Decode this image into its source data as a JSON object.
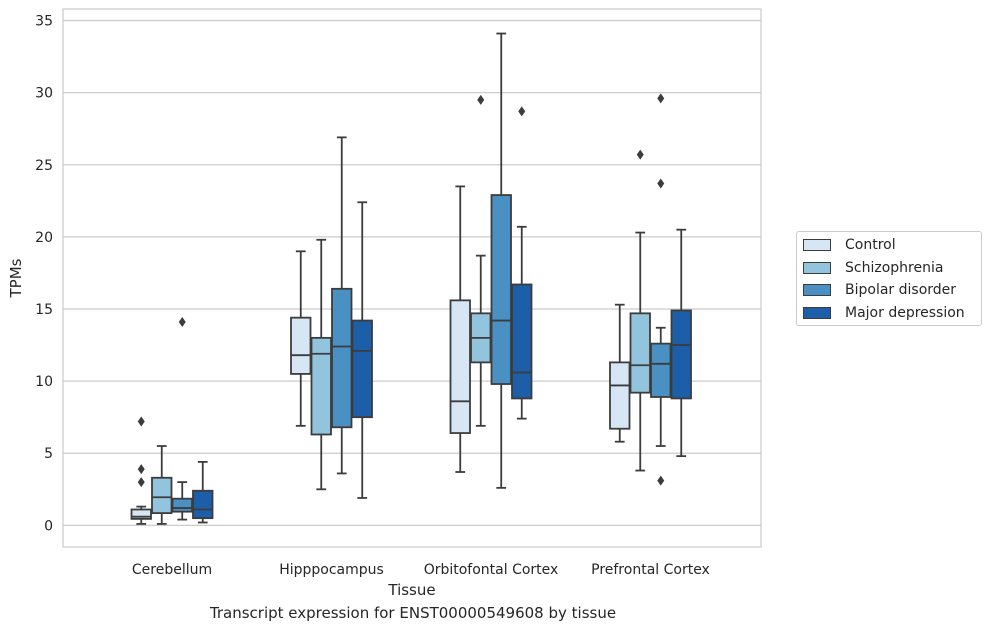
{
  "caption": "Transcript expression for ENST00000549608 by tissue",
  "legend": {
    "items": [
      {
        "label": "Control",
        "color": "#d6e6f4"
      },
      {
        "label": "Schizophrenia",
        "color": "#93c4de"
      },
      {
        "label": "Bipolar disorder",
        "color": "#4a90c2"
      },
      {
        "label": "Major depression",
        "color": "#1c5ea8"
      }
    ]
  },
  "chart_data": {
    "type": "box",
    "xlabel": "Tissue",
    "ylabel": "TPMs",
    "ylim": [
      -1.5,
      35.8
    ],
    "yticks": [
      0,
      5,
      10,
      15,
      20,
      25,
      30,
      35
    ],
    "grid": true,
    "legend_position": "right",
    "categories": [
      "Cerebellum",
      "Hipppocampus",
      "Orbitofontal Cortex",
      "Prefrontal Cortex"
    ],
    "series": [
      {
        "name": "Control",
        "color": "#d6e6f4",
        "boxes": [
          {
            "whislo": 0.1,
            "q1": 0.45,
            "med": 0.6,
            "q3": 1.1,
            "whishi": 1.3,
            "fliers": [
              3.0,
              3.9,
              7.2
            ]
          },
          {
            "whislo": 6.9,
            "q1": 10.5,
            "med": 11.8,
            "q3": 14.4,
            "whishi": 19.0,
            "fliers": []
          },
          {
            "whislo": 3.7,
            "q1": 6.4,
            "med": 8.6,
            "q3": 15.6,
            "whishi": 23.5,
            "fliers": []
          },
          {
            "whislo": 5.8,
            "q1": 6.7,
            "med": 9.7,
            "q3": 11.3,
            "whishi": 15.3,
            "fliers": []
          }
        ]
      },
      {
        "name": "Schizophrenia",
        "color": "#93c4de",
        "boxes": [
          {
            "whislo": 0.1,
            "q1": 0.85,
            "med": 1.95,
            "q3": 3.3,
            "whishi": 5.5,
            "fliers": []
          },
          {
            "whislo": 2.5,
            "q1": 6.3,
            "med": 11.9,
            "q3": 13.0,
            "whishi": 19.8,
            "fliers": []
          },
          {
            "whislo": 6.9,
            "q1": 11.3,
            "med": 13.0,
            "q3": 14.7,
            "whishi": 18.7,
            "fliers": [
              29.5
            ]
          },
          {
            "whislo": 3.8,
            "q1": 9.2,
            "med": 11.1,
            "q3": 14.7,
            "whishi": 20.3,
            "fliers": [
              25.7
            ]
          }
        ]
      },
      {
        "name": "Bipolar disorder",
        "color": "#4a90c2",
        "boxes": [
          {
            "whislo": 0.4,
            "q1": 0.95,
            "med": 1.2,
            "q3": 1.85,
            "whishi": 3.0,
            "fliers": [
              14.1
            ]
          },
          {
            "whislo": 3.6,
            "q1": 6.8,
            "med": 12.4,
            "q3": 16.4,
            "whishi": 26.9,
            "fliers": []
          },
          {
            "whislo": 2.6,
            "q1": 9.8,
            "med": 14.2,
            "q3": 22.9,
            "whishi": 34.1,
            "fliers": []
          },
          {
            "whislo": 5.5,
            "q1": 8.9,
            "med": 11.2,
            "q3": 12.6,
            "whishi": 13.7,
            "fliers": [
              3.1,
              23.7,
              29.6
            ]
          }
        ]
      },
      {
        "name": "Major depression",
        "color": "#1c5ea8",
        "boxes": [
          {
            "whislo": 0.2,
            "q1": 0.5,
            "med": 1.1,
            "q3": 2.4,
            "whishi": 4.4,
            "fliers": []
          },
          {
            "whislo": 1.9,
            "q1": 7.5,
            "med": 12.1,
            "q3": 14.2,
            "whishi": 22.4,
            "fliers": []
          },
          {
            "whislo": 7.4,
            "q1": 8.8,
            "med": 10.6,
            "q3": 16.7,
            "whishi": 20.7,
            "fliers": [
              28.7
            ]
          },
          {
            "whislo": 4.8,
            "q1": 8.8,
            "med": 12.5,
            "q3": 14.9,
            "whishi": 20.5,
            "fliers": []
          }
        ]
      }
    ]
  }
}
